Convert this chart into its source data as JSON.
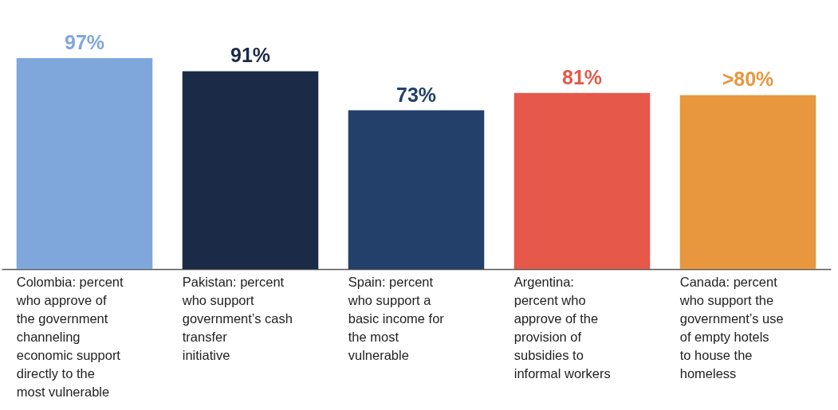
{
  "chart_data": {
    "type": "bar",
    "categories": [
      "Colombia: percent who approve of the government channeling economic support directly to the most vulnerable",
      "Pakistan: percent who support government’s cash transfer initiative",
      "Spain: percent who support a basic income for the most vulnerable",
      "Argentina: percent who approve of the provision of subsidies to informal workers",
      "Canada: percent who support the government’s use of empty hotels to house the homeless"
    ],
    "values": [
      97,
      91,
      73,
      81,
      80
    ],
    "colors": [
      "#7fa7dc",
      "#1b2a47",
      "#23406a",
      "#e5584a",
      "#e8973f"
    ],
    "value_labels": [
      "97%",
      "91%",
      "73%",
      "81%",
      ">80%"
    ]
  }
}
